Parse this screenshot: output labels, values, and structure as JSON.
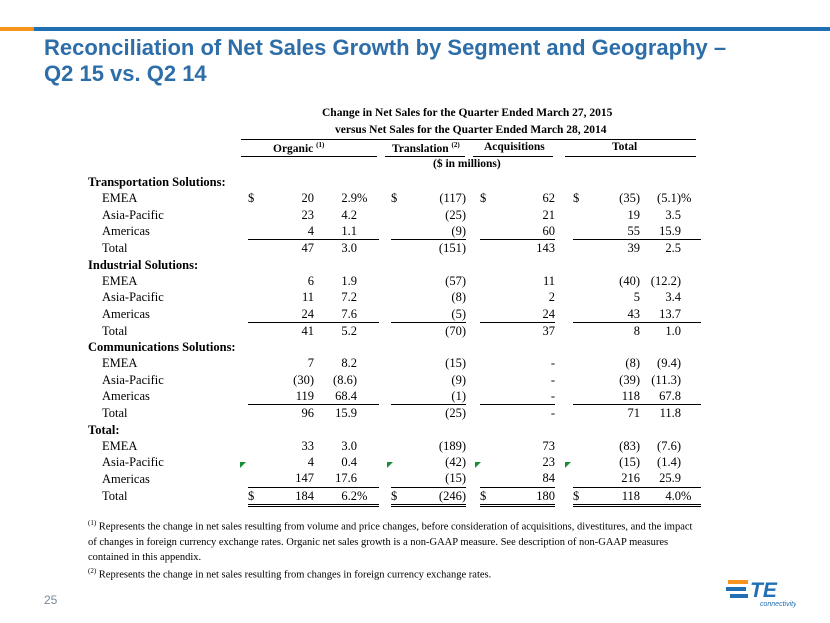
{
  "title": {
    "line1": "Reconciliation of Net Sales Growth by Segment and Geography –",
    "line2": "Q2 15 vs. Q2 14"
  },
  "header": {
    "line1": "Change in Net Sales for the Quarter Ended March 27, 2015",
    "line2": "versus Net Sales for the Quarter Ended March 28, 2014",
    "organic": "Organic",
    "organic_note": "(1)",
    "translation": "Translation",
    "translation_note": "(2)",
    "acquisitions": "Acquisitions",
    "total": "Total",
    "units": "($ in millions)"
  },
  "sections": [
    {
      "label": "Transportation Solutions:",
      "rows": [
        {
          "label": "EMEA",
          "org_d": "$",
          "org": "20",
          "org_p": "2.9",
          "org_ps": "%",
          "tr_d": "$",
          "tr": "(117)",
          "acq_d": "$",
          "acq": "62",
          "tot_d": "$",
          "tot": "(35)",
          "tot_p": "(5.1)",
          "tot_ps": "%"
        },
        {
          "label": "Asia-Pacific",
          "org": "23",
          "org_p": "4.2",
          "tr": "(25)",
          "acq": "21",
          "tot": "19",
          "tot_p": "3.5"
        },
        {
          "label": "Americas",
          "org": "4",
          "org_p": "1.1",
          "tr": "(9)",
          "acq": "60",
          "tot": "55",
          "tot_p": "15.9"
        },
        {
          "label": "Total",
          "org": "47",
          "org_p": "3.0",
          "tr": "(151)",
          "acq": "143",
          "tot": "39",
          "tot_p": "2.5"
        }
      ]
    },
    {
      "label": "Industrial Solutions:",
      "rows": [
        {
          "label": "EMEA",
          "org": "6",
          "org_p": "1.9",
          "tr": "(57)",
          "acq": "11",
          "tot": "(40)",
          "tot_p": "(12.2)"
        },
        {
          "label": "Asia-Pacific",
          "org": "11",
          "org_p": "7.2",
          "tr": "(8)",
          "acq": "2",
          "tot": "5",
          "tot_p": "3.4"
        },
        {
          "label": "Americas",
          "org": "24",
          "org_p": "7.6",
          "tr": "(5)",
          "acq": "24",
          "tot": "43",
          "tot_p": "13.7"
        },
        {
          "label": "Total",
          "org": "41",
          "org_p": "5.2",
          "tr": "(70)",
          "acq": "37",
          "tot": "8",
          "tot_p": "1.0"
        }
      ]
    },
    {
      "label": "Communications Solutions:",
      "rows": [
        {
          "label": "EMEA",
          "org": "7",
          "org_p": "8.2",
          "tr": "(15)",
          "acq": "-",
          "tot": "(8)",
          "tot_p": "(9.4)"
        },
        {
          "label": "Asia-Pacific",
          "org": "(30)",
          "org_p": "(8.6)",
          "tr": "(9)",
          "acq": "-",
          "tot": "(39)",
          "tot_p": "(11.3)"
        },
        {
          "label": "Americas",
          "org": "119",
          "org_p": "68.4",
          "tr": "(1)",
          "acq": "-",
          "tot": "118",
          "tot_p": "67.8"
        },
        {
          "label": "Total",
          "org": "96",
          "org_p": "15.9",
          "tr": "(25)",
          "acq": "-",
          "tot": "71",
          "tot_p": "11.8"
        }
      ]
    },
    {
      "label": "Total:",
      "rows": [
        {
          "label": "EMEA",
          "org": "33",
          "org_p": "3.0",
          "tr": "(189)",
          "acq": "73",
          "tot": "(83)",
          "tot_p": "(7.6)"
        },
        {
          "label": "Asia-Pacific",
          "org": "4",
          "org_p": "0.4",
          "tr": "(42)",
          "acq": "23",
          "tot": "(15)",
          "tot_p": "(1.4)"
        },
        {
          "label": "Americas",
          "org": "147",
          "org_p": "17.6",
          "tr": "(15)",
          "acq": "84",
          "tot": "216",
          "tot_p": "25.9"
        },
        {
          "label": "Total",
          "org_d": "$",
          "org": "184",
          "org_p": "6.2",
          "org_ps": "%",
          "tr_d": "$",
          "tr": "(246)",
          "acq_d": "$",
          "acq": "180",
          "tot_d": "$",
          "tot": "118",
          "tot_p": "4.0",
          "tot_ps": "%"
        }
      ]
    }
  ],
  "footnotes": {
    "n1_mark": "(1)",
    "n1": "Represents the change in net sales resulting from volume and price changes, before consideration of acquisitions, divestitures, and the impact of changes in foreign currency exchange rates. Organic net sales growth is a non-GAAP measure. See description of non-GAAP measures contained in this appendix.",
    "n2_mark": "(2)",
    "n2": "Represents the change in net sales resulting from changes in foreign currency exchange rates."
  },
  "page_number": "25",
  "logo": {
    "text": "TE",
    "subtext": "connectivity",
    "color": "#f7941d"
  }
}
